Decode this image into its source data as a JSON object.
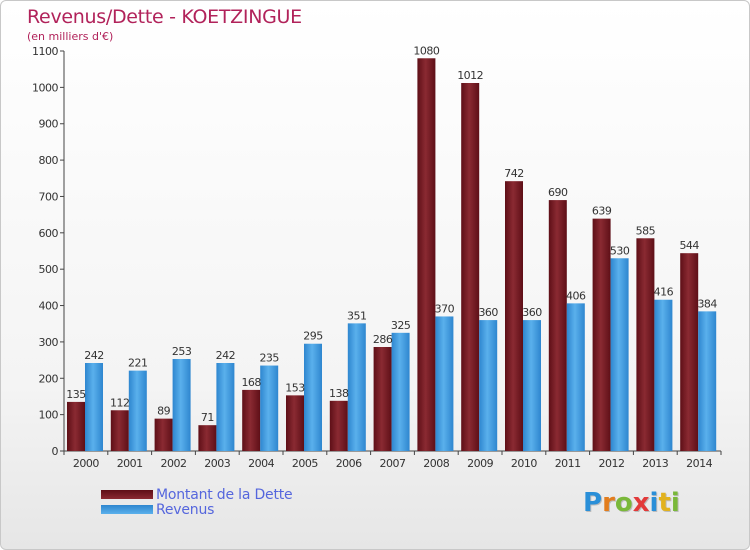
{
  "header": {
    "title": "Revenus/Dette - KOETZINGUE",
    "subtitle": "(en milliers d'€)"
  },
  "legend": {
    "debt_label": "Montant de la Dette",
    "revenue_label": "Revenus"
  },
  "logo": {
    "text": "Proxiti",
    "letters": [
      "P",
      "r",
      "o",
      "x",
      "i",
      "t",
      "i"
    ]
  },
  "colors": {
    "debt": "#7a1a22",
    "revenue": "#3d9be0",
    "title": "#b1225a",
    "legend_text": "#5566dd"
  },
  "chart_data": {
    "type": "bar",
    "title": "Revenus/Dette - KOETZINGUE",
    "subtitle": "(en milliers d'€)",
    "xlabel": "",
    "ylabel": "",
    "ylim": [
      0,
      1100
    ],
    "yticks": [
      0,
      100,
      200,
      300,
      400,
      500,
      600,
      700,
      800,
      900,
      1000,
      1100
    ],
    "grid": false,
    "legend": "bottom-left",
    "categories": [
      "2000",
      "2001",
      "2002",
      "2003",
      "2004",
      "2005",
      "2006",
      "2007",
      "2008",
      "2009",
      "2010",
      "2011",
      "2012",
      "2013",
      "2014"
    ],
    "series": [
      {
        "name": "Montant de la Dette",
        "values": [
          135,
          112,
          89,
          71,
          168,
          153,
          138,
          286,
          1080,
          1012,
          742,
          690,
          639,
          585,
          544
        ]
      },
      {
        "name": "Revenus",
        "values": [
          242,
          221,
          253,
          242,
          235,
          295,
          351,
          325,
          370,
          360,
          360,
          406,
          530,
          416,
          384
        ]
      }
    ]
  }
}
